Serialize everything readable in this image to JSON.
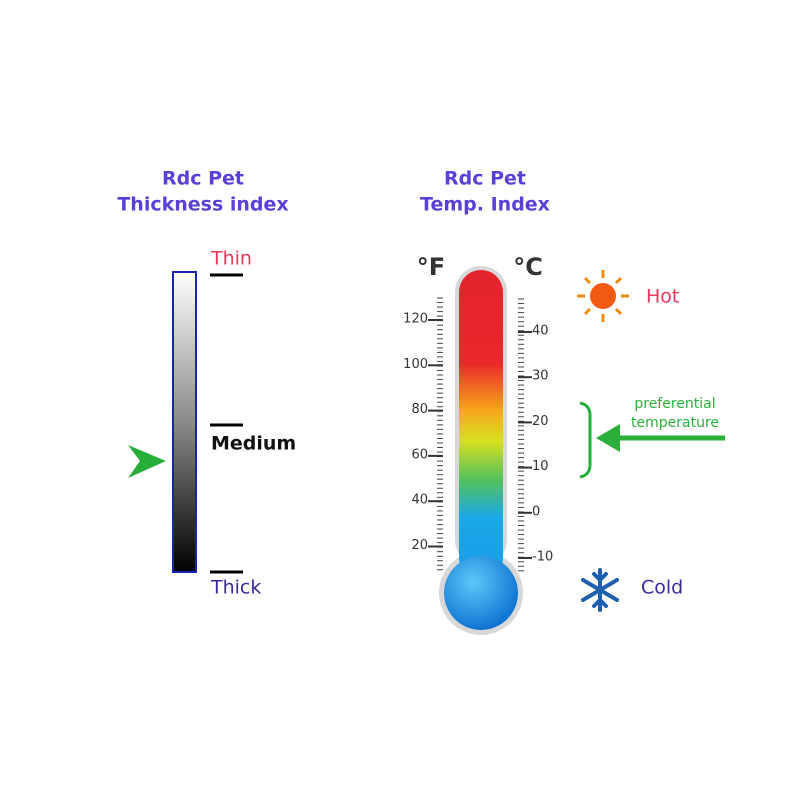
{
  "left_panel": {
    "title": [
      "Rdc Pet",
      "Thickness index"
    ],
    "levels": [
      "Thin",
      "Medium",
      "Thick"
    ]
  },
  "right_panel": {
    "title": [
      "Rdc Pet",
      "Temp. Index"
    ],
    "fahrenheit": {
      "unit": "°F",
      "labels": [
        120,
        100,
        80,
        60,
        40,
        20
      ]
    },
    "celsius": {
      "unit": "°C",
      "labels": [
        40,
        30,
        20,
        10,
        0,
        -10
      ]
    },
    "hot": "Hot",
    "cold": "Cold",
    "annotation": [
      "preferential",
      "temperature"
    ]
  }
}
